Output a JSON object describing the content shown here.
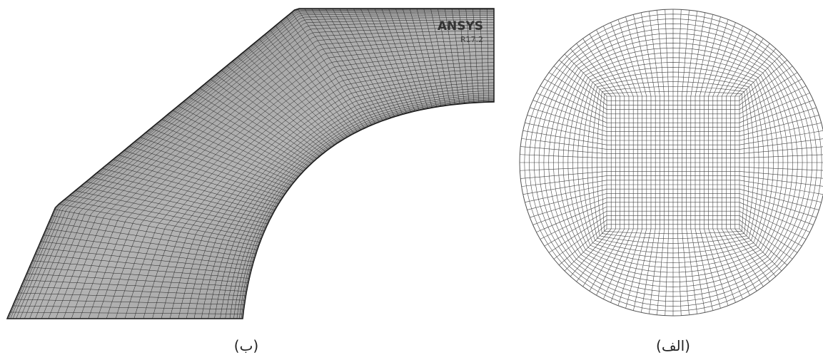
{
  "panels": [
    {
      "label": "(ب)",
      "logo": "ANSYS",
      "version": "R17.2"
    },
    {
      "label": "(الف)"
    }
  ]
}
